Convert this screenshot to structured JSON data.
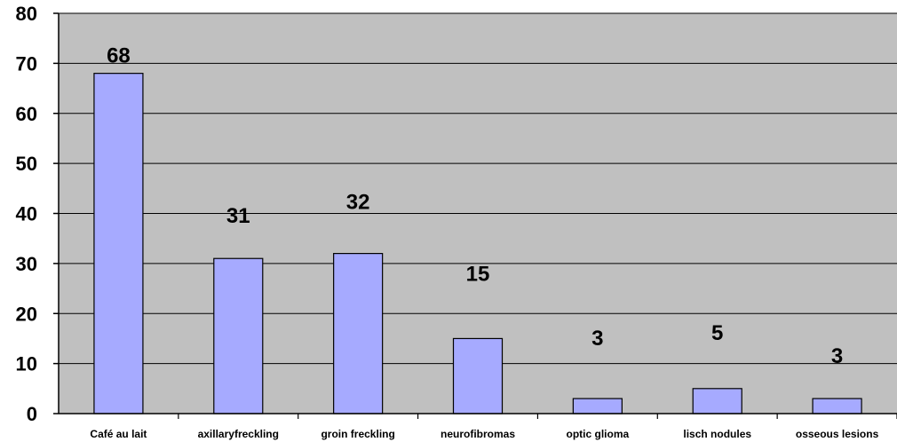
{
  "chart_data": {
    "type": "bar",
    "categories": [
      "Café au lait",
      "axillaryfreckling",
      "groin freckling",
      "neurofibromas",
      "optic glioma",
      "lisch nodules",
      "osseous lesions"
    ],
    "values": [
      68,
      31,
      32,
      15,
      3,
      5,
      3
    ],
    "data_labels": [
      "68",
      "31",
      "32",
      "15",
      "3",
      "5",
      "3"
    ],
    "title": "",
    "xlabel": "",
    "ylabel": "",
    "ylim": [
      0,
      80
    ],
    "yticks": [
      "0",
      "10",
      "20",
      "30",
      "40",
      "50",
      "60",
      "70",
      "80"
    ],
    "grid": true,
    "legend": "none",
    "colors": {
      "plot_background": "#c0c0c0",
      "bar_fill": "#a6aaff",
      "bar_stroke": "#000000",
      "gridline": "#000000"
    }
  }
}
